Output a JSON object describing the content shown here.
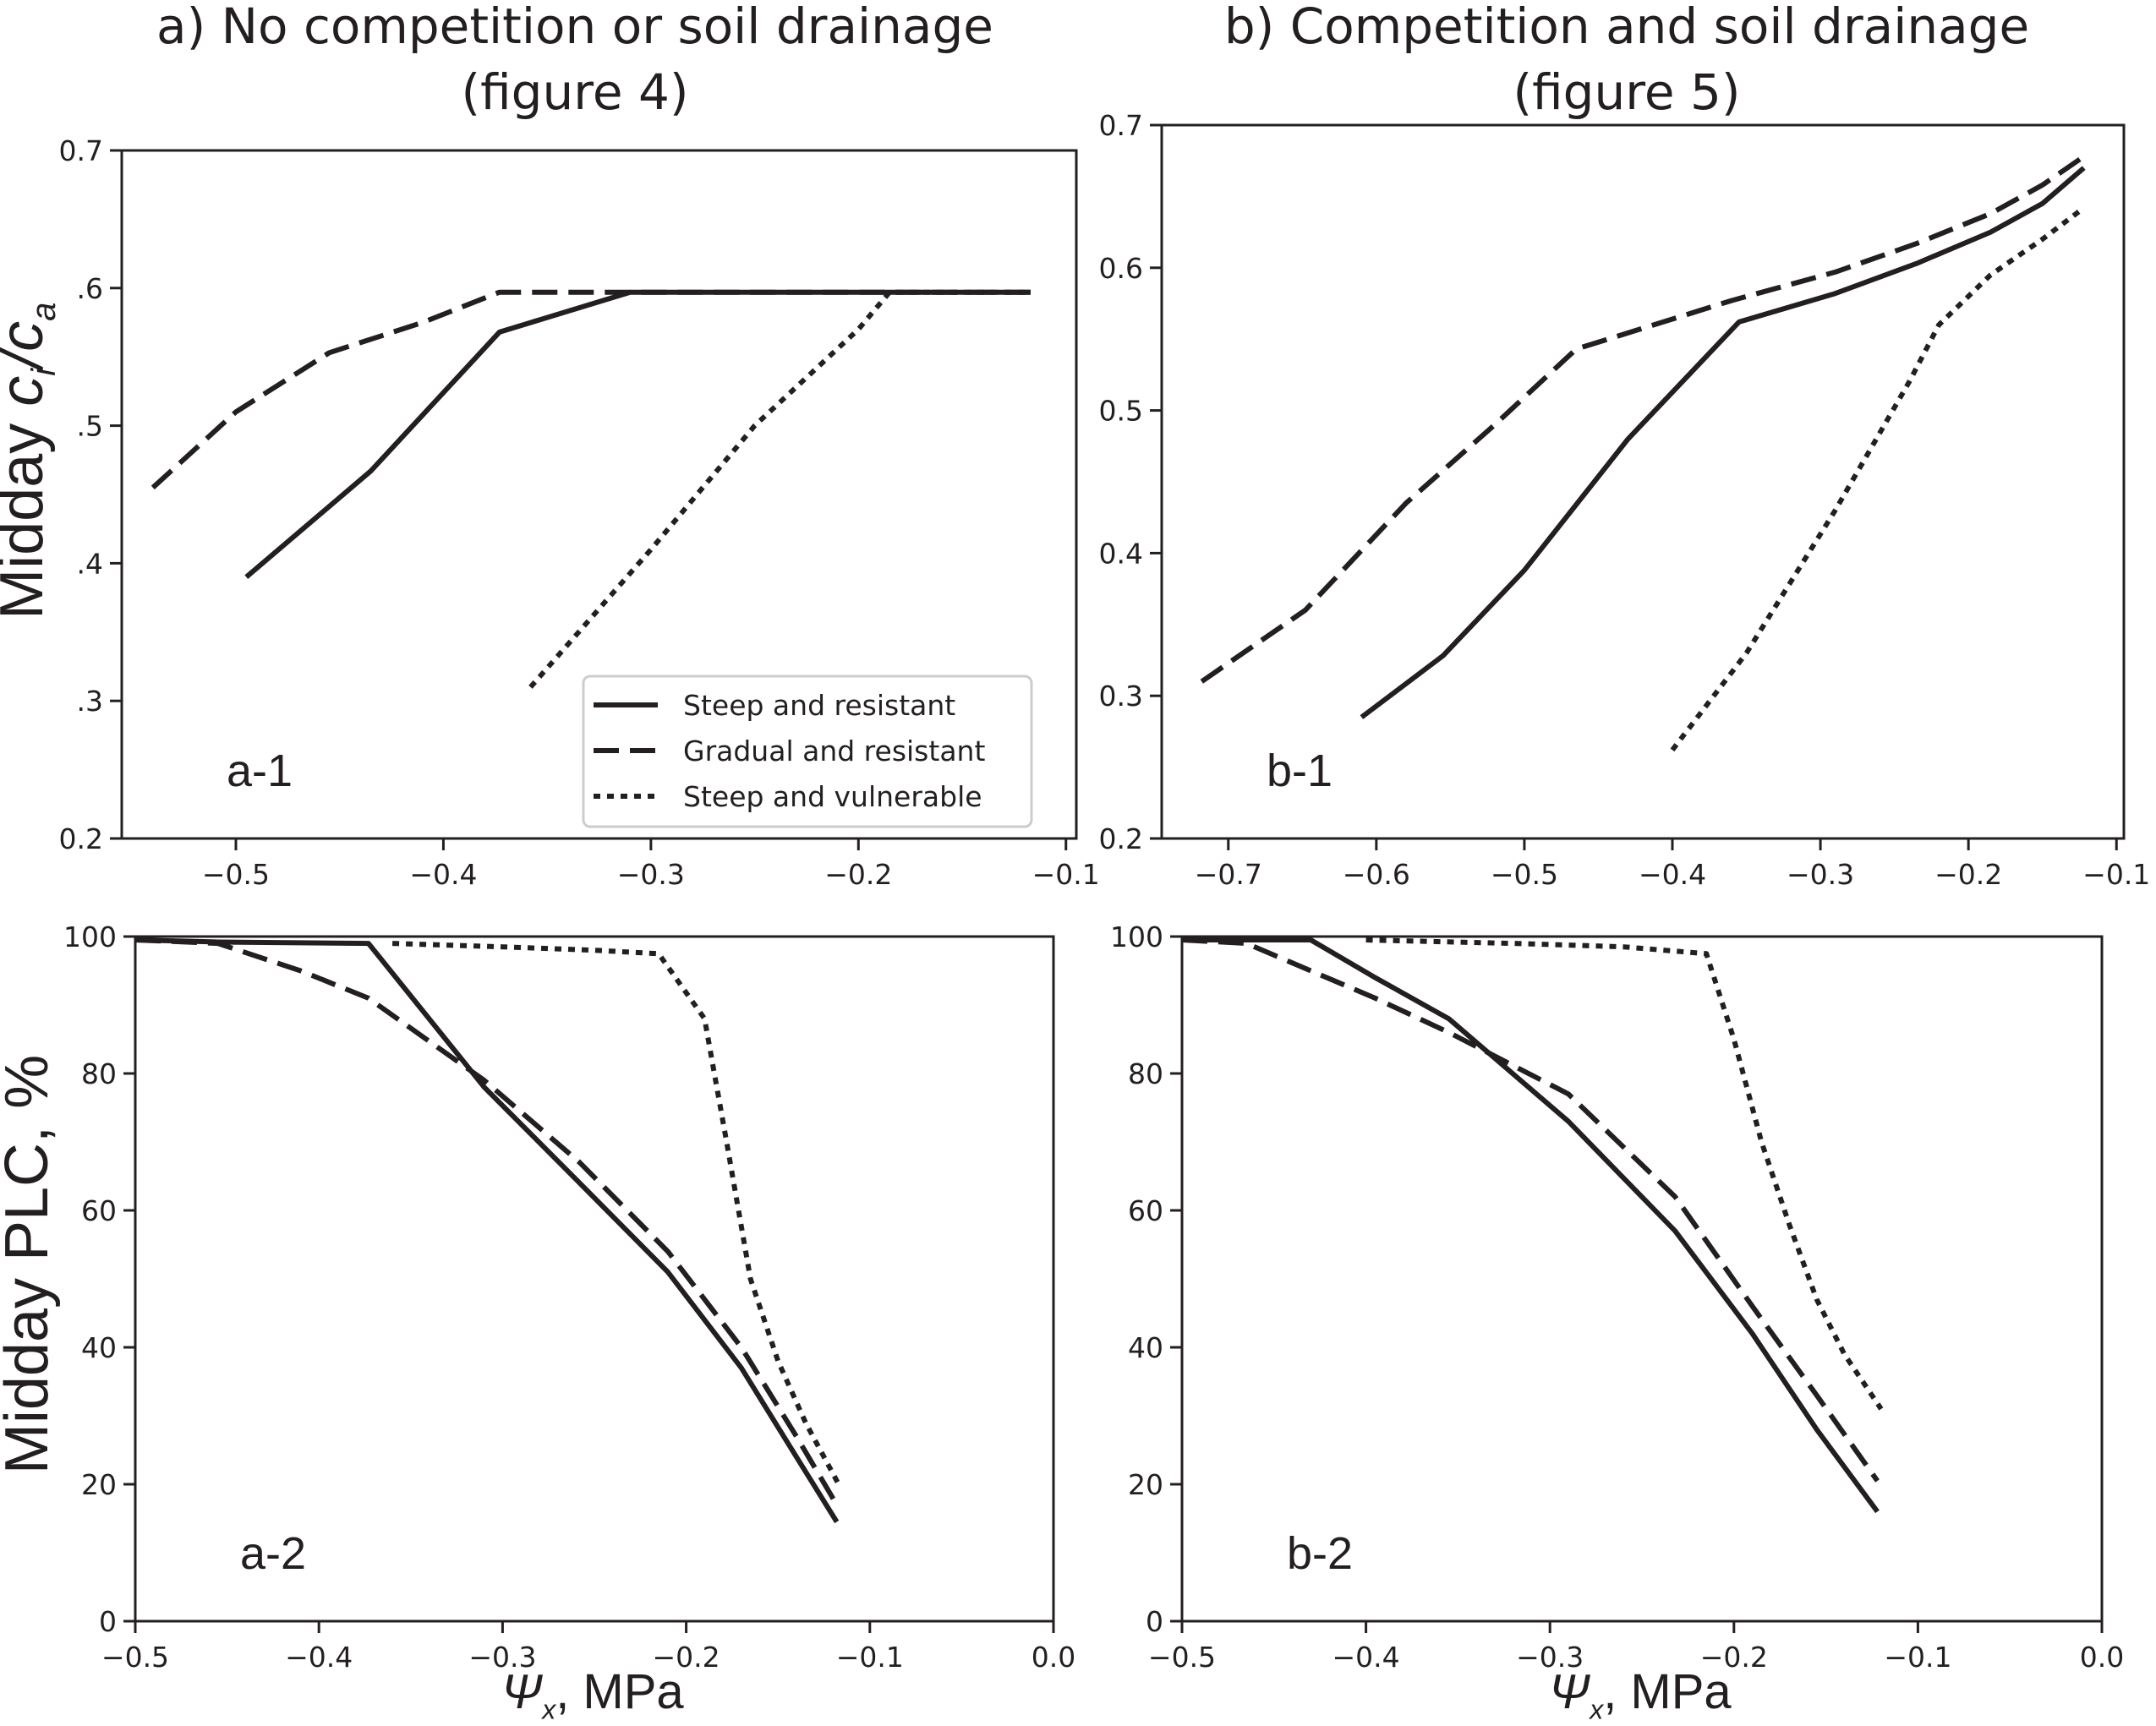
{
  "titles": {
    "col_a_line1": "a) No competition or soil drainage",
    "col_a_line2": "(figure 4)",
    "col_b_line1": "b) Competition and soil drainage",
    "col_b_line2": "(figure 5)"
  },
  "axis_labels": {
    "y_top": "Midday c_i/c_a",
    "y_top_prefix": "Midday ",
    "y_top_c": "c",
    "y_top_i": "i",
    "y_top_slash": "/",
    "y_top_a": "a",
    "y_bottom": "Midday PLC, %",
    "x_psi": "Ψ",
    "x_sub": "x",
    "x_unit": ", MPa"
  },
  "legend": {
    "entries": [
      {
        "label": "Steep and resistant",
        "style": "solid"
      },
      {
        "label": "Gradual and resistant",
        "style": "dashed"
      },
      {
        "label": "Steep and vulnerable",
        "style": "dotted"
      }
    ]
  },
  "colors": {
    "line": "#231f20",
    "axes": "#231f20",
    "legend_border": "#cccccc"
  },
  "chart_data": [
    {
      "panel_label": "a-1",
      "type": "line",
      "xlim": [
        -0.555,
        -0.095
      ],
      "ylim": [
        0.2,
        0.7
      ],
      "xticks": [
        -0.5,
        -0.4,
        -0.3,
        -0.2,
        -0.1
      ],
      "xtick_labels": [
        "−0.5",
        "−0.4",
        "−0.3",
        "−0.2",
        "−0.1"
      ],
      "yticks": [
        0.2,
        0.3,
        0.4,
        0.5,
        0.6,
        0.7
      ],
      "ytick_labels": [
        "0.2",
        ".3",
        ".4",
        ".5",
        ".6",
        "0.7"
      ],
      "legend": true,
      "legend_position": "lower right",
      "series": [
        {
          "name": "Steep and resistant",
          "style": "solid",
          "x": [
            -0.495,
            -0.435,
            -0.373,
            -0.31,
            -0.2,
            -0.117
          ],
          "y": [
            0.39,
            0.467,
            0.568,
            0.597,
            0.597,
            0.597
          ]
        },
        {
          "name": "Gradual and resistant",
          "style": "dashed",
          "x": [
            -0.54,
            -0.5,
            -0.455,
            -0.41,
            -0.373,
            -0.31,
            -0.2,
            -0.117
          ],
          "y": [
            0.455,
            0.51,
            0.553,
            0.575,
            0.597,
            0.597,
            0.597,
            0.597
          ]
        },
        {
          "name": "Steep and vulnerable",
          "style": "dotted",
          "x": [
            -0.358,
            -0.3,
            -0.25,
            -0.2,
            -0.185,
            -0.117
          ],
          "y": [
            0.31,
            0.41,
            0.5,
            0.57,
            0.597,
            0.597
          ]
        }
      ]
    },
    {
      "panel_label": "b-1",
      "type": "line",
      "xlim": [
        -0.745,
        -0.095
      ],
      "ylim": [
        0.2,
        0.7
      ],
      "xticks": [
        -0.7,
        -0.6,
        -0.5,
        -0.4,
        -0.3,
        -0.2,
        -0.1
      ],
      "xtick_labels": [
        "−0.7",
        "−0.6",
        "−0.5",
        "−0.4",
        "−0.3",
        "−0.2",
        "−0.1"
      ],
      "yticks": [
        0.2,
        0.3,
        0.4,
        0.5,
        0.6,
        0.7
      ],
      "ytick_labels": [
        "0.2",
        "0.3",
        "0.4",
        "0.5",
        "0.6",
        "0.7"
      ],
      "legend": false,
      "series": [
        {
          "name": "Steep and resistant",
          "style": "solid",
          "x": [
            -0.61,
            -0.555,
            -0.5,
            -0.43,
            -0.355,
            -0.29,
            -0.235,
            -0.185,
            -0.15,
            -0.122
          ],
          "y": [
            0.285,
            0.328,
            0.388,
            0.48,
            0.562,
            0.582,
            0.603,
            0.625,
            0.645,
            0.67
          ]
        },
        {
          "name": "Gradual and resistant",
          "style": "dashed",
          "x": [
            -0.718,
            -0.648,
            -0.58,
            -0.52,
            -0.465,
            -0.36,
            -0.29,
            -0.235,
            -0.185,
            -0.15,
            -0.122
          ],
          "y": [
            0.31,
            0.36,
            0.435,
            0.49,
            0.543,
            0.577,
            0.597,
            0.617,
            0.638,
            0.658,
            0.678
          ]
        },
        {
          "name": "Steep and vulnerable",
          "style": "dotted",
          "x": [
            -0.4,
            -0.35,
            -0.29,
            -0.24,
            -0.22,
            -0.185,
            -0.15,
            -0.122
          ],
          "y": [
            0.262,
            0.33,
            0.43,
            0.52,
            0.56,
            0.595,
            0.62,
            0.642
          ]
        }
      ]
    },
    {
      "panel_label": "a-2",
      "type": "line",
      "xlim": [
        -0.5,
        0.0
      ],
      "ylim": [
        0,
        100
      ],
      "xticks": [
        -0.5,
        -0.4,
        -0.3,
        -0.2,
        -0.1,
        0.0
      ],
      "xtick_labels": [
        "−0.5",
        "−0.4",
        "−0.3",
        "−0.2",
        "−0.1",
        "0.0"
      ],
      "yticks": [
        0,
        20,
        40,
        60,
        80,
        100
      ],
      "ytick_labels": [
        "0",
        "20",
        "40",
        "60",
        "80",
        "100"
      ],
      "legend": false,
      "series": [
        {
          "name": "Steep and resistant",
          "style": "solid",
          "x": [
            -0.5,
            -0.455,
            -0.373,
            -0.31,
            -0.258,
            -0.21,
            -0.17,
            -0.14,
            -0.118
          ],
          "y": [
            99.5,
            99.2,
            99,
            78,
            64,
            51,
            37,
            24,
            14.5
          ]
        },
        {
          "name": "Gradual and resistant",
          "style": "dashed",
          "x": [
            -0.5,
            -0.455,
            -0.41,
            -0.373,
            -0.31,
            -0.258,
            -0.21,
            -0.17,
            -0.14,
            -0.118
          ],
          "y": [
            99.5,
            99,
            95,
            91,
            79,
            67,
            54,
            40,
            27,
            17
          ]
        },
        {
          "name": "Steep and vulnerable",
          "style": "dotted",
          "x": [
            -0.36,
            -0.3,
            -0.25,
            -0.215,
            -0.19,
            -0.178,
            -0.165,
            -0.15,
            -0.135,
            -0.117
          ],
          "y": [
            99,
            98.5,
            98,
            97.5,
            88,
            70,
            50,
            38,
            29,
            20
          ]
        }
      ]
    },
    {
      "panel_label": "b-2",
      "type": "line",
      "xlim": [
        -0.5,
        0.0
      ],
      "ylim": [
        0,
        100
      ],
      "xticks": [
        -0.5,
        -0.4,
        -0.3,
        -0.2,
        -0.1,
        0.0
      ],
      "xtick_labels": [
        "−0.5",
        "−0.4",
        "−0.3",
        "−0.2",
        "−0.1",
        "0.0"
      ],
      "yticks": [
        0,
        20,
        40,
        60,
        80,
        100
      ],
      "ytick_labels": [
        "0",
        "20",
        "40",
        "60",
        "80",
        "100"
      ],
      "legend": false,
      "series": [
        {
          "name": "Steep and resistant",
          "style": "solid",
          "x": [
            -0.5,
            -0.465,
            -0.43,
            -0.395,
            -0.355,
            -0.29,
            -0.232,
            -0.19,
            -0.155,
            -0.122
          ],
          "y": [
            99.5,
            99.5,
            99.5,
            94,
            88,
            73,
            57,
            42,
            28,
            16
          ]
        },
        {
          "name": "Gradual and resistant",
          "style": "dashed",
          "x": [
            -0.5,
            -0.465,
            -0.43,
            -0.395,
            -0.355,
            -0.29,
            -0.232,
            -0.19,
            -0.155,
            -0.122
          ],
          "y": [
            99.5,
            99,
            95,
            91,
            86,
            77,
            62,
            46,
            33,
            20.5
          ]
        },
        {
          "name": "Steep and vulnerable",
          "style": "dotted",
          "x": [
            -0.4,
            -0.32,
            -0.26,
            -0.215,
            -0.2,
            -0.185,
            -0.17,
            -0.155,
            -0.14,
            -0.12
          ],
          "y": [
            99.5,
            99,
            98.5,
            97.5,
            85,
            70,
            58,
            47,
            39,
            31
          ]
        }
      ]
    }
  ]
}
